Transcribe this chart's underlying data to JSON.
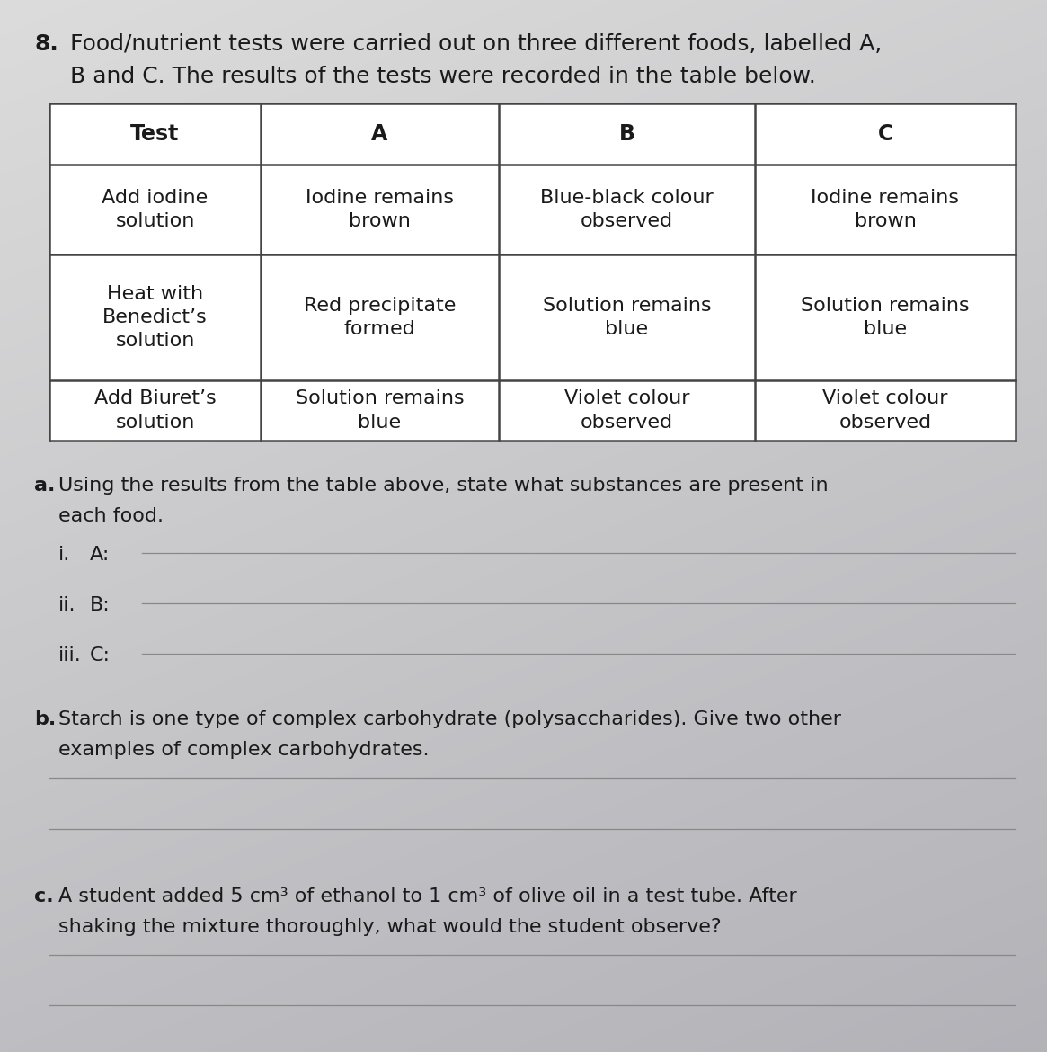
{
  "question_number": "8.",
  "question_text_line1": "Food/nutrient tests were carried out on three different foods, labelled A,",
  "question_text_line2": "B and C. The results of the tests were recorded in the table below.",
  "table_headers": [
    "Test",
    "A",
    "B",
    "C"
  ],
  "table_rows": [
    [
      "Add iodine\nsolution",
      "Iodine remains\nbrown",
      "Blue-black colour\nobserved",
      "Iodine remains\nbrown"
    ],
    [
      "Heat with\nBenedict’s\nsolution",
      "Red precipitate\nformed",
      "Solution remains\nblue",
      "Solution remains\nblue"
    ],
    [
      "Add Biuret’s\nsolution",
      "Solution remains\nblue",
      "Violet colour\nobserved",
      "Violet colour\nobserved"
    ]
  ],
  "part_a_label": "a.",
  "part_a_text_line1": "Using the results from the table above, state what substances are present in",
  "part_a_text_line2": "each food.",
  "sub_labels": [
    "i.",
    "ii.",
    "iii."
  ],
  "sub_sublabels": [
    "A:",
    "B:",
    "C:"
  ],
  "part_b_label": "b.",
  "part_b_text_line1": "Starch is one type of complex carbohydrate (polysaccharides). Give two other",
  "part_b_text_line2": "examples of complex carbohydrates.",
  "part_c_label": "c.",
  "part_c_text_line1": "A student added 5 cm³ of ethanol to 1 cm³ of olive oil in a test tube. After",
  "part_c_text_line2": "shaking the mixture thoroughly, what would the student observe?",
  "bg_color_top": "#dcdcdc",
  "bg_color_bottom": "#b0b0b0",
  "text_color": "#1a1a1a",
  "table_line_color": "#444444",
  "answer_line_color": "#888888",
  "font_size_q": 18,
  "font_size_table": 16,
  "font_size_body": 16
}
